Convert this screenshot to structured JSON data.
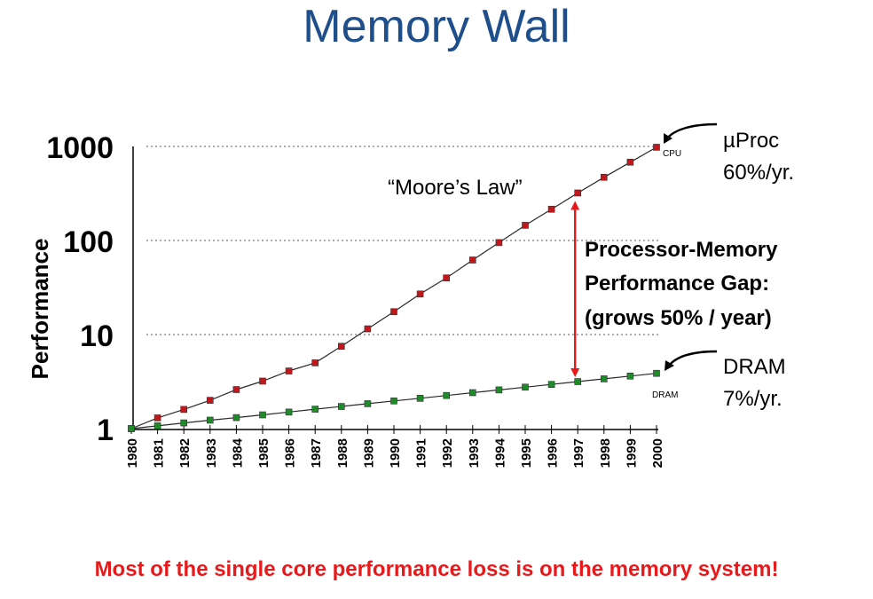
{
  "title": "Memory Wall",
  "footer": "Most of the single core performance loss is on the memory system!",
  "colors": {
    "title": "#1f4e8c",
    "cpu_marker": "#c0181c",
    "dram_marker": "#1e8a2a",
    "gap_arrow": "#e8191b",
    "moores_law": "#e8191b",
    "footer": "#e8191b"
  },
  "chart_data": {
    "type": "line",
    "ylabel": "Performance",
    "y_scale": "log",
    "ylim": [
      1,
      1000
    ],
    "y_ticks": [
      "1",
      "10",
      "100",
      "1000"
    ],
    "x": [
      "1980",
      "1981",
      "1982",
      "1983",
      "1984",
      "1985",
      "1986",
      "1987",
      "1988",
      "1989",
      "1990",
      "1991",
      "1992",
      "1993",
      "1994",
      "1995",
      "1996",
      "1997",
      "1998",
      "1999",
      "2000"
    ],
    "series": [
      {
        "name": "CPU",
        "values": [
          1,
          1.3,
          1.6,
          2.0,
          2.6,
          3.2,
          4.1,
          5.0,
          7.5,
          11.5,
          17.5,
          27,
          40,
          62,
          95,
          145,
          215,
          320,
          470,
          680,
          980
        ]
      },
      {
        "name": "DRAM",
        "values": [
          1,
          1.07,
          1.15,
          1.23,
          1.31,
          1.4,
          1.5,
          1.61,
          1.72,
          1.84,
          1.97,
          2.1,
          2.25,
          2.41,
          2.58,
          2.76,
          2.95,
          3.16,
          3.38,
          3.62,
          3.87
        ]
      }
    ],
    "annotations": {
      "cpu_line1": "µProc",
      "cpu_line2": "60%/yr.",
      "dram_line1": "DRAM",
      "dram_line2": "7%/yr.",
      "moores_law": "“Moore’s Law”",
      "gap_line1": "Processor-Memory",
      "gap_line2": "Performance Gap:",
      "gap_line3": "(grows 50% / year)",
      "gap_year": "1997"
    },
    "grid": "dotted horizontal at 10, 100, 1000"
  }
}
